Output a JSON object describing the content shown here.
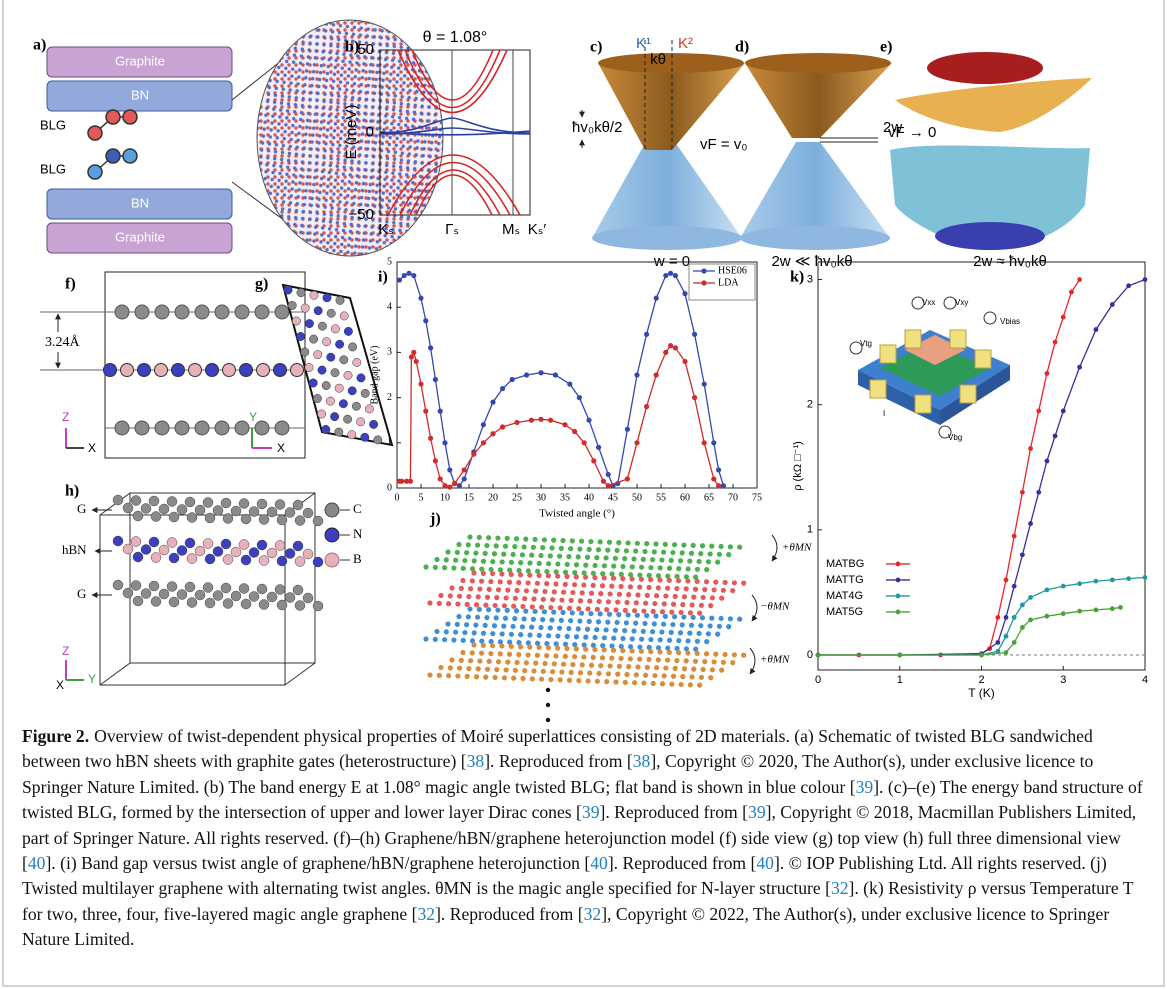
{
  "panels": {
    "a": {
      "label": "a)",
      "layers": [
        "Graphite",
        "BN",
        "BLG",
        "BLG",
        "BN",
        "Graphite"
      ]
    },
    "b": {
      "label": "b)",
      "title": "θ = 1.08°",
      "ylabel": "E (meV)",
      "ylim": [
        -50,
        50
      ],
      "yticks": [
        50,
        0,
        {
          "value": -50,
          "label": "−50"
        }
      ],
      "xlabels": [
        "Kₛ",
        "Γₛ",
        "Mₛ",
        "Kₛ′"
      ]
    },
    "c": {
      "label": "c)",
      "k1": "K¹",
      "k2": "K²",
      "ktheta": "kθ",
      "gap": "ħv₀kθ/2",
      "velocity": "vF = v₀",
      "caption": "w = 0"
    },
    "d": {
      "label": "d)",
      "gap": "2w",
      "caption": "2w ≪ ħv₀kθ"
    },
    "e": {
      "label": "e)",
      "velocity": "vF → 0",
      "caption": "2w ≈ ħv₀kθ"
    },
    "f": {
      "label": "f)",
      "distance": "3.24Å",
      "axis_z": "Z",
      "axis_x": "X"
    },
    "g": {
      "label": "g)",
      "axis_y": "Y",
      "axis_x": "X"
    },
    "h": {
      "label": "h)",
      "legend": [
        "C",
        "N",
        "B"
      ],
      "layers": [
        "G",
        "hBN",
        "G"
      ],
      "axis_z": "Z",
      "axis_x": "X",
      "axis_y": "Y"
    },
    "i": {
      "label": "i)"
    },
    "j": {
      "label": "j)",
      "angles": [
        "+θMN",
        "−θMN",
        "+θMN"
      ]
    },
    "k": {
      "label": "k)",
      "inset": [
        "Vxx",
        "Vxy",
        "Vbias",
        "Vtg",
        "I",
        "Vbg"
      ]
    }
  },
  "chart_data": [
    {
      "type": "line",
      "xlabel": "Twisted angle (°)",
      "ylabel": "Band gap (eV)",
      "xlim": [
        0,
        75
      ],
      "ylim": [
        0,
        5
      ],
      "xticks": [
        0,
        5,
        10,
        15,
        20,
        25,
        30,
        35,
        40,
        45,
        50,
        55,
        60,
        65,
        70,
        75
      ],
      "yticks": [
        0,
        1,
        2,
        3,
        4,
        5
      ],
      "legend": "upper right",
      "series": [
        {
          "name": "HSE06",
          "color": "#3448b0",
          "x": [
            0.5,
            1.5,
            2.5,
            3.5,
            5,
            6,
            7,
            8,
            9,
            10,
            11,
            12,
            13,
            14,
            16,
            18,
            20,
            22,
            24,
            27,
            30,
            33,
            36,
            38,
            40,
            42,
            44,
            45,
            46,
            48,
            50,
            52,
            54,
            56,
            57,
            58,
            60,
            62,
            64,
            66,
            67,
            68
          ],
          "values": [
            4.6,
            4.7,
            4.75,
            4.7,
            4.2,
            3.7,
            3.1,
            2.4,
            1.7,
            1.0,
            0.4,
            0.1,
            0.05,
            0.2,
            0.8,
            1.4,
            1.9,
            2.2,
            2.4,
            2.5,
            2.55,
            2.5,
            2.3,
            2.0,
            1.5,
            0.9,
            0.3,
            0.05,
            0.1,
            1.3,
            2.5,
            3.4,
            4.2,
            4.7,
            4.75,
            4.7,
            4.3,
            3.4,
            2.3,
            1.0,
            0.4,
            0.05
          ]
        },
        {
          "name": "LDA",
          "color": "#d22b2b",
          "x": [
            0.5,
            1,
            2,
            2.8,
            3,
            3.5,
            4,
            5,
            6,
            7,
            8,
            9,
            10,
            11,
            12,
            14,
            16,
            18,
            20,
            22,
            25,
            28,
            30,
            32,
            35,
            37,
            39,
            41,
            43,
            44,
            48,
            50,
            52,
            54,
            56,
            57,
            58,
            60,
            62,
            64,
            66,
            67
          ],
          "values": [
            0.15,
            0.15,
            0.15,
            0.15,
            2.9,
            3.0,
            2.8,
            2.3,
            1.7,
            1.1,
            0.6,
            0.2,
            0.05,
            0.02,
            0.1,
            0.4,
            0.75,
            1.0,
            1.2,
            1.35,
            1.45,
            1.5,
            1.52,
            1.5,
            1.4,
            1.25,
            1.0,
            0.6,
            0.15,
            0.05,
            0.2,
            1.0,
            1.8,
            2.5,
            3.0,
            3.15,
            3.1,
            2.8,
            2.0,
            1.0,
            0.2,
            0.05
          ]
        }
      ]
    },
    {
      "type": "line",
      "xlabel": "T (K)",
      "ylabel": "ρ (kΩ □⁻¹)",
      "xlim": [
        0,
        4
      ],
      "ylim": [
        -0.12,
        3.14
      ],
      "xticks": [
        0,
        1,
        2,
        3,
        4
      ],
      "yticks": [
        0,
        1,
        2,
        3
      ],
      "legend": "center left",
      "reference_line": 0,
      "series": [
        {
          "name": "MATBG",
          "color": "#e8262a",
          "x": [
            0,
            0.5,
            1,
            1.5,
            2,
            2.1,
            2.2,
            2.3,
            2.4,
            2.5,
            2.6,
            2.7,
            2.8,
            2.9,
            3.0,
            3.1,
            3.2
          ],
          "values": [
            0,
            0,
            0,
            0,
            0.01,
            0.05,
            0.3,
            0.6,
            0.95,
            1.3,
            1.65,
            1.95,
            2.25,
            2.5,
            2.7,
            2.9,
            3.0
          ]
        },
        {
          "name": "MATTG",
          "color": "#3b2e9e",
          "x": [
            0,
            1,
            2,
            2.2,
            2.3,
            2.4,
            2.5,
            2.6,
            2.7,
            2.8,
            2.9,
            3.0,
            3.2,
            3.4,
            3.6,
            3.8,
            4.0
          ],
          "values": [
            0,
            0,
            0.01,
            0.1,
            0.3,
            0.55,
            0.8,
            1.05,
            1.3,
            1.55,
            1.75,
            1.95,
            2.3,
            2.6,
            2.8,
            2.95,
            3.0
          ]
        },
        {
          "name": "MAT4G",
          "color": "#1f9aa0",
          "x": [
            0,
            1,
            2,
            2.2,
            2.3,
            2.4,
            2.5,
            2.6,
            2.8,
            3.0,
            3.2,
            3.4,
            3.6,
            3.8,
            4.0
          ],
          "values": [
            0,
            0,
            0,
            0.03,
            0.15,
            0.3,
            0.4,
            0.46,
            0.52,
            0.55,
            0.57,
            0.59,
            0.6,
            0.61,
            0.62
          ]
        },
        {
          "name": "MAT5G",
          "color": "#4aa336",
          "x": [
            0,
            1,
            2,
            2.3,
            2.4,
            2.5,
            2.6,
            2.8,
            3.0,
            3.2,
            3.4,
            3.6,
            3.7
          ],
          "values": [
            0,
            0,
            0,
            0.02,
            0.1,
            0.22,
            0.28,
            0.31,
            0.33,
            0.35,
            0.36,
            0.37,
            0.38
          ]
        }
      ]
    }
  ],
  "caption": {
    "label": "Figure 2.",
    "parts": [
      "Overview of twist-dependent physical properties of Moiré superlattices consisting of 2D materials. (a) Schematic of twisted BLG sandwiched between two hBN sheets with graphite gates (heterostructure) [",
      "38",
      "]. Reproduced from [",
      "38",
      "], Copyright © 2020, The Author(s), under exclusive licence to Springer Nature Limited. (b) The band energy E at 1.08° magic angle twisted BLG; flat band is shown in blue colour [",
      "39",
      "]. (c)–(e) The energy band structure of twisted BLG, formed by the intersection of upper and lower layer Dirac cones [",
      "39",
      "]. Reproduced from [",
      "39",
      "], Copyright © 2018, Macmillan Publishers Limited, part of Springer Nature. All rights reserved. (f)–(h) Graphene/hBN/graphene heterojunction model (f) side view (g) top view (h) full three dimensional view [",
      "40",
      "]. (i) Band gap versus twist angle of graphene/hBN/graphene heterojunction [",
      "40",
      "]. Reproduced from [",
      "40",
      "]. © IOP Publishing Ltd. All rights reserved. (j) Twisted multilayer graphene with alternating twist angles. θMN is the magic angle specified for N-layer structure [",
      "32",
      "]. (k) Resistivity ρ versus Temperature T for two, three, four, five-layered magic angle graphene [",
      "32",
      "]. Reproduced from [",
      "32",
      "], Copyright © 2022, The Author(s), under exclusive licence to Springer Nature Limited."
    ]
  }
}
